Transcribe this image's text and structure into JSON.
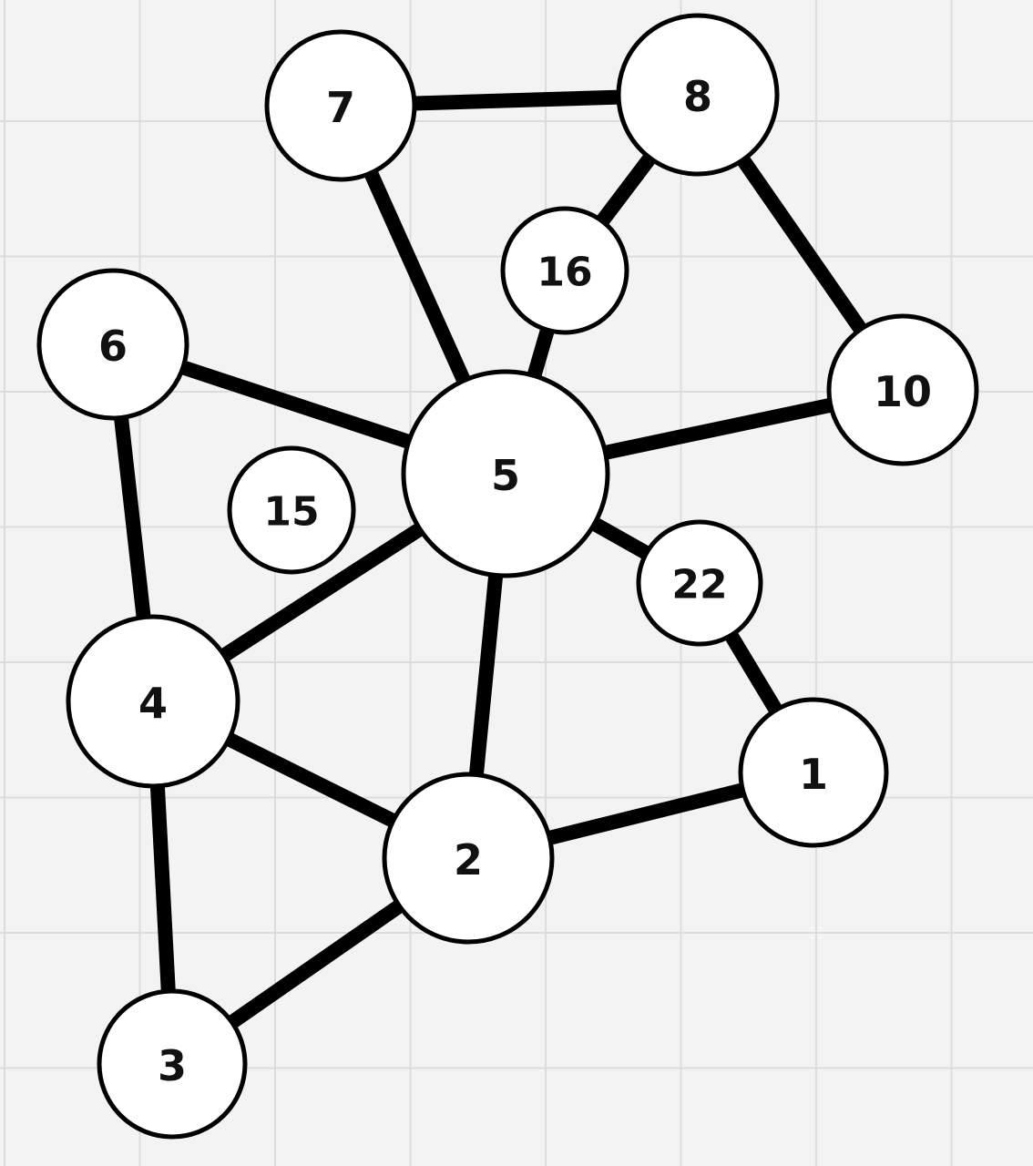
{
  "graph": {
    "nodes": [
      {
        "id": "1",
        "label": "1"
      },
      {
        "id": "2",
        "label": "2"
      },
      {
        "id": "3",
        "label": "3"
      },
      {
        "id": "4",
        "label": "4"
      },
      {
        "id": "5",
        "label": "5"
      },
      {
        "id": "6",
        "label": "6"
      },
      {
        "id": "7",
        "label": "7"
      },
      {
        "id": "8",
        "label": "8"
      },
      {
        "id": "10",
        "label": "10"
      },
      {
        "id": "15",
        "label": "15"
      },
      {
        "id": "16",
        "label": "16"
      },
      {
        "id": "22",
        "label": "22"
      }
    ],
    "edges": [
      {
        "from": "7",
        "to": "8"
      },
      {
        "from": "7",
        "to": "5"
      },
      {
        "from": "8",
        "to": "16"
      },
      {
        "from": "16",
        "to": "5"
      },
      {
        "from": "8",
        "to": "10"
      },
      {
        "from": "10",
        "to": "5"
      },
      {
        "from": "6",
        "to": "5"
      },
      {
        "from": "6",
        "to": "4"
      },
      {
        "from": "5",
        "to": "4"
      },
      {
        "from": "5",
        "to": "2"
      },
      {
        "from": "5",
        "to": "22"
      },
      {
        "from": "22",
        "to": "1"
      },
      {
        "from": "4",
        "to": "2"
      },
      {
        "from": "4",
        "to": "3"
      },
      {
        "from": "2",
        "to": "1"
      },
      {
        "from": "2",
        "to": "3"
      }
    ]
  },
  "colors": {
    "background": "#f3f3f3",
    "grid": "#dcdcdc",
    "node_fill": "#ffffff",
    "stroke": "#000000"
  }
}
